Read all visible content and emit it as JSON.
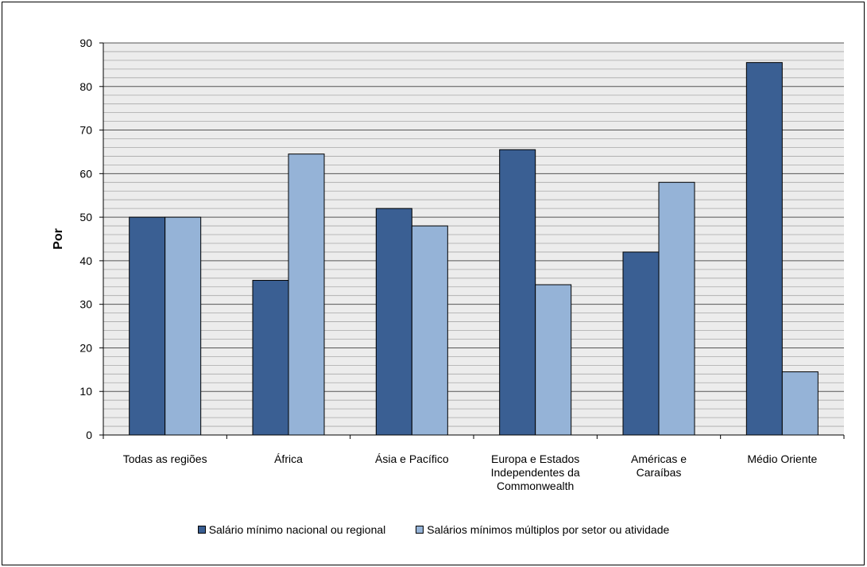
{
  "chart_data": {
    "type": "bar",
    "title": "",
    "ylabel": "Por",
    "xlabel": "",
    "ylim": [
      0,
      90
    ],
    "y_major_step": 10,
    "y_minor_step": 2,
    "grid": true,
    "legend_position": "bottom",
    "categories": [
      [
        "Todas as regiões"
      ],
      [
        "África"
      ],
      [
        "Ásia e Pacífico"
      ],
      [
        "Europa e Estados",
        "Independentes da",
        "Commonwealth"
      ],
      [
        "Américas e",
        "Caraíbas"
      ],
      [
        "Médio Oriente"
      ]
    ],
    "series": [
      {
        "name": "Salário mínimo nacional ou regional",
        "color": "#3a5f93",
        "values": [
          50,
          35.5,
          52,
          65.5,
          42,
          85.5
        ]
      },
      {
        "name": "Salários mínimos múltiplos por setor ou atividade",
        "color": "#95b3d7",
        "values": [
          50,
          64.5,
          48,
          34.5,
          58,
          14.5
        ]
      }
    ]
  }
}
